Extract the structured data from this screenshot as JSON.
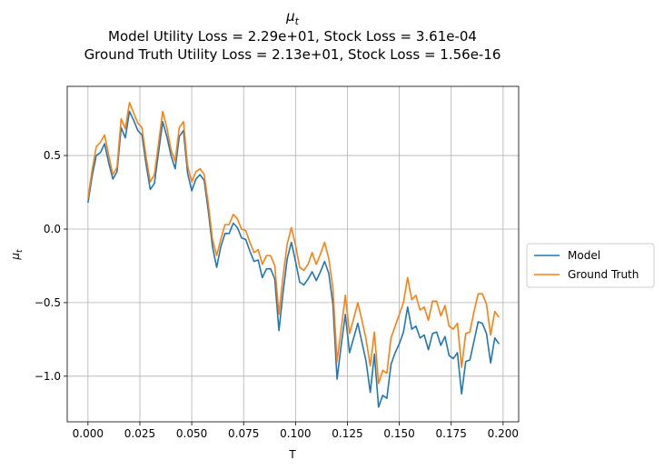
{
  "chart_data": {
    "type": "line",
    "title": "μ",
    "title_sub": "t",
    "subtitle_lines": [
      "Model Utility Loss = 2.29e+01, Stock Loss = 3.61e-04",
      "Ground Truth Utility Loss = 2.13e+01, Stock Loss = 1.56e-16"
    ],
    "xlabel": "T",
    "ylabel": "μ",
    "ylabel_sub": "t",
    "xlim": [
      -0.01,
      0.2075
    ],
    "ylim": [
      -1.31,
      0.97
    ],
    "xticks": [
      0.0,
      0.025,
      0.05,
      0.075,
      0.1,
      0.125,
      0.15,
      0.175,
      0.2
    ],
    "xtick_labels": [
      "0.000",
      "0.025",
      "0.050",
      "0.075",
      "0.100",
      "0.125",
      "0.150",
      "0.175",
      "0.200"
    ],
    "yticks": [
      0.5,
      0.0,
      -0.5,
      -1.0
    ],
    "ytick_labels": [
      "0.5",
      "0.0",
      "−0.5",
      "−1.0"
    ],
    "grid": true,
    "legend_position": "outside-right",
    "x": [
      0.0,
      0.002,
      0.004,
      0.006,
      0.008,
      0.01,
      0.012,
      0.014,
      0.016,
      0.018,
      0.02,
      0.022,
      0.024,
      0.026,
      0.028,
      0.03,
      0.032,
      0.034,
      0.036,
      0.038,
      0.04,
      0.042,
      0.044,
      0.046,
      0.048,
      0.05,
      0.052,
      0.054,
      0.056,
      0.058,
      0.06,
      0.062,
      0.064,
      0.066,
      0.068,
      0.07,
      0.072,
      0.074,
      0.076,
      0.078,
      0.08,
      0.082,
      0.084,
      0.086,
      0.088,
      0.09,
      0.092,
      0.094,
      0.096,
      0.098,
      0.1,
      0.102,
      0.104,
      0.106,
      0.108,
      0.11,
      0.112,
      0.114,
      0.116,
      0.118,
      0.12,
      0.122,
      0.124,
      0.126,
      0.128,
      0.13,
      0.132,
      0.134,
      0.136,
      0.138,
      0.14,
      0.142,
      0.144,
      0.146,
      0.148,
      0.15,
      0.152,
      0.154,
      0.156,
      0.158,
      0.16,
      0.162,
      0.164,
      0.166,
      0.168,
      0.17,
      0.172,
      0.174,
      0.176,
      0.178,
      0.18,
      0.182,
      0.184,
      0.186,
      0.188,
      0.19,
      0.192,
      0.194,
      0.196,
      0.198
    ],
    "series": [
      {
        "name": "Model",
        "color": "#1f77b4",
        "values": [
          0.18,
          0.36,
          0.5,
          0.52,
          0.58,
          0.45,
          0.34,
          0.39,
          0.69,
          0.62,
          0.8,
          0.74,
          0.67,
          0.64,
          0.44,
          0.27,
          0.31,
          0.52,
          0.73,
          0.63,
          0.5,
          0.41,
          0.63,
          0.67,
          0.38,
          0.26,
          0.34,
          0.37,
          0.33,
          0.12,
          -0.12,
          -0.26,
          -0.12,
          -0.03,
          -0.03,
          0.04,
          0.01,
          -0.06,
          -0.07,
          -0.15,
          -0.22,
          -0.21,
          -0.33,
          -0.27,
          -0.27,
          -0.34,
          -0.69,
          -0.43,
          -0.2,
          -0.09,
          -0.22,
          -0.36,
          -0.38,
          -0.34,
          -0.29,
          -0.35,
          -0.29,
          -0.22,
          -0.3,
          -0.51,
          -1.02,
          -0.79,
          -0.58,
          -0.84,
          -0.74,
          -0.64,
          -0.77,
          -0.9,
          -1.11,
          -0.85,
          -1.21,
          -1.13,
          -1.15,
          -0.92,
          -0.84,
          -0.78,
          -0.7,
          -0.53,
          -0.68,
          -0.66,
          -0.74,
          -0.72,
          -0.82,
          -0.71,
          -0.7,
          -0.79,
          -0.73,
          -0.86,
          -0.88,
          -0.84,
          -1.12,
          -0.9,
          -0.89,
          -0.76,
          -0.63,
          -0.64,
          -0.71,
          -0.91,
          -0.74,
          -0.78
        ]
      },
      {
        "name": "Ground Truth",
        "color": "#ff7f0e",
        "values": [
          0.21,
          0.4,
          0.56,
          0.59,
          0.64,
          0.5,
          0.37,
          0.42,
          0.75,
          0.68,
          0.86,
          0.79,
          0.72,
          0.69,
          0.49,
          0.32,
          0.37,
          0.58,
          0.8,
          0.69,
          0.54,
          0.46,
          0.69,
          0.73,
          0.43,
          0.32,
          0.39,
          0.41,
          0.37,
          0.17,
          -0.07,
          -0.18,
          -0.07,
          0.03,
          0.03,
          0.1,
          0.07,
          0.0,
          -0.01,
          -0.09,
          -0.16,
          -0.14,
          -0.24,
          -0.18,
          -0.18,
          -0.25,
          -0.58,
          -0.32,
          -0.1,
          0.01,
          -0.11,
          -0.26,
          -0.28,
          -0.24,
          -0.16,
          -0.24,
          -0.17,
          -0.09,
          -0.2,
          -0.4,
          -0.9,
          -0.68,
          -0.45,
          -0.71,
          -0.61,
          -0.5,
          -0.62,
          -0.75,
          -0.93,
          -0.7,
          -1.05,
          -0.96,
          -0.98,
          -0.74,
          -0.66,
          -0.58,
          -0.5,
          -0.33,
          -0.48,
          -0.45,
          -0.55,
          -0.53,
          -0.62,
          -0.49,
          -0.49,
          -0.59,
          -0.52,
          -0.66,
          -0.68,
          -0.64,
          -0.94,
          -0.71,
          -0.7,
          -0.56,
          -0.44,
          -0.44,
          -0.51,
          -0.72,
          -0.56,
          -0.6
        ]
      }
    ]
  }
}
